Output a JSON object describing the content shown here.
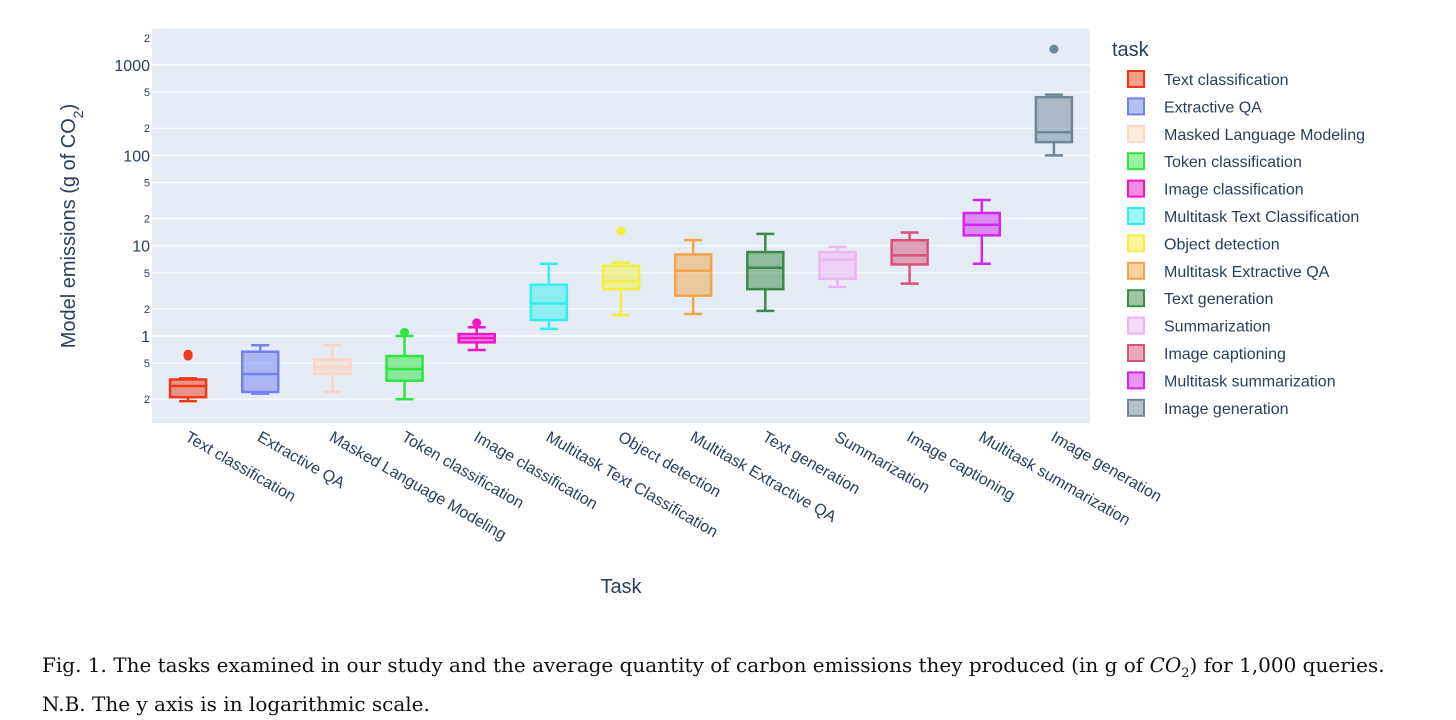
{
  "chart_data": {
    "type": "box",
    "xlabel": "Task",
    "ylabel": "Model emissions (g of CO",
    "ylabel_sub": "2",
    "ylabel_close": ")",
    "yscale": "log",
    "ylim": [
      0.12,
      2000
    ],
    "y_major_ticks": [
      {
        "value": 1,
        "label": "1"
      },
      {
        "value": 10,
        "label": "10"
      },
      {
        "value": 100,
        "label": "100"
      },
      {
        "value": 1000,
        "label": "1000"
      }
    ],
    "y_minor_ticks": [
      {
        "value": 0.2,
        "label": "2"
      },
      {
        "value": 0.5,
        "label": "5"
      },
      {
        "value": 2,
        "label": "2"
      },
      {
        "value": 5,
        "label": "5"
      },
      {
        "value": 20,
        "label": "2"
      },
      {
        "value": 50,
        "label": "5"
      },
      {
        "value": 200,
        "label": "2"
      },
      {
        "value": 500,
        "label": "5"
      },
      {
        "value": 2000,
        "label": "2"
      }
    ],
    "grid": true,
    "legend_title": "task",
    "legend_position": "right",
    "series": [
      {
        "name": "Text classification",
        "color": "#f03818",
        "min": 0.19,
        "q1": 0.21,
        "median": 0.28,
        "q3": 0.33,
        "max": 0.34,
        "outliers": [
          0.6,
          0.63
        ]
      },
      {
        "name": "Extractive QA",
        "color": "#7380f0",
        "min": 0.23,
        "q1": 0.24,
        "median": 0.38,
        "q3": 0.67,
        "max": 0.79,
        "outliers": []
      },
      {
        "name": "Masked Language Modeling",
        "color": "#fbd6c4",
        "min": 0.24,
        "q1": 0.38,
        "median": 0.45,
        "q3": 0.55,
        "max": 0.79,
        "outliers": []
      },
      {
        "name": "Token classification",
        "color": "#2ee63f",
        "min": 0.2,
        "q1": 0.32,
        "median": 0.43,
        "q3": 0.6,
        "max": 1.0,
        "outliers": [
          1.1
        ]
      },
      {
        "name": "Image classification",
        "color": "#f016c5",
        "min": 0.7,
        "q1": 0.85,
        "median": 0.95,
        "q3": 1.05,
        "max": 1.25,
        "outliers": [
          1.4
        ]
      },
      {
        "name": "Multitask Text Classification",
        "color": "#33efee",
        "min": 1.2,
        "q1": 1.5,
        "median": 2.3,
        "q3": 3.7,
        "max": 6.3,
        "outliers": []
      },
      {
        "name": "Object detection",
        "color": "#f3ef3d",
        "min": 1.7,
        "q1": 3.3,
        "median": 4.0,
        "q3": 6.0,
        "max": 6.5,
        "outliers": [
          14.5
        ]
      },
      {
        "name": "Multitask Extractive QA",
        "color": "#f3a448",
        "min": 1.75,
        "q1": 2.8,
        "median": 5.3,
        "q3": 8.0,
        "max": 11.5,
        "outliers": []
      },
      {
        "name": "Text generation",
        "color": "#3c8a48",
        "min": 1.9,
        "q1": 3.3,
        "median": 5.7,
        "q3": 8.5,
        "max": 13.5,
        "outliers": []
      },
      {
        "name": "Summarization",
        "color": "#efb5f3",
        "min": 3.5,
        "q1": 4.3,
        "median": 7.0,
        "q3": 8.5,
        "max": 9.7,
        "outliers": []
      },
      {
        "name": "Image captioning",
        "color": "#d65377",
        "min": 3.8,
        "q1": 6.2,
        "median": 7.8,
        "q3": 11.5,
        "max": 14.0,
        "outliers": []
      },
      {
        "name": "Multitask summarization",
        "color": "#d526f0",
        "min": 6.3,
        "q1": 13.0,
        "median": 17.0,
        "q3": 23.0,
        "max": 32.0,
        "outliers": []
      },
      {
        "name": "Image generation",
        "color": "#6f8798",
        "min": 100,
        "q1": 140,
        "median": 180,
        "q3": 440,
        "max": 470,
        "outliers": [
          1500
        ]
      }
    ]
  },
  "caption": {
    "prefix": "Fig. 1.  The tasks examined in our study and the average quantity of carbon emissions they produced (in g of ",
    "co": "CO",
    "co_sub": "2",
    "suffix": ") for 1,000 queries.",
    "line2": "N.B. The y axis is in logarithmic scale."
  }
}
